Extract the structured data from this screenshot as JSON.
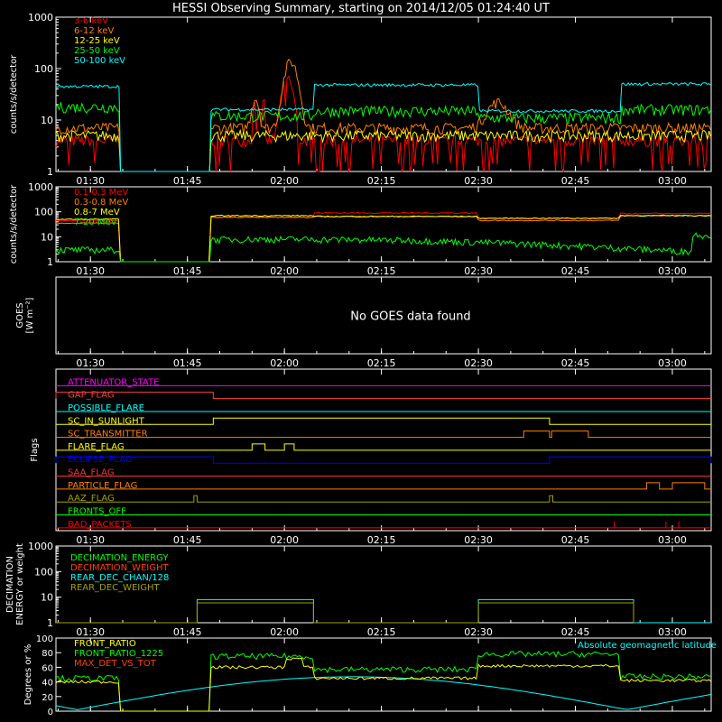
{
  "title": "HESSI Observing Summary, starting on 2014/12/05 01:24:40 UT",
  "time_ticks": [
    "01:30",
    "01:45",
    "02:00",
    "02:15",
    "02:30",
    "02:45",
    "03:00"
  ],
  "colors": {
    "red": "#ff0000",
    "orange": "#ff7f00",
    "yellow": "#ffff00",
    "green": "#00ff00",
    "cyan": "#00ffff",
    "white": "#ffffff",
    "magenta": "#ff00ff",
    "blue": "#0000ff",
    "olive": "#a0a000",
    "brownorange": "#ff8000"
  },
  "chart_data": [
    {
      "type": "line",
      "panel": "lowE",
      "ylabel": "counts/s/detector",
      "y_scale": "log",
      "ylim": [
        1,
        1000
      ],
      "y_ticks": [
        "1",
        "10",
        "100",
        "1000"
      ],
      "series": [
        {
          "name": "3-6 keV",
          "color": "#ff0000"
        },
        {
          "name": "6-12 keV",
          "color": "#ff7f00"
        },
        {
          "name": "12-25 keV",
          "color": "#ffff00"
        },
        {
          "name": "25-50 keV",
          "color": "#00ff00"
        },
        {
          "name": "50-100 keV",
          "color": "#00ffff"
        }
      ]
    },
    {
      "type": "line",
      "panel": "highE",
      "ylabel": "counts/s/detector",
      "y_scale": "log",
      "ylim": [
        1,
        1000
      ],
      "y_ticks": [
        "1",
        "10",
        "100",
        "1000"
      ],
      "series": [
        {
          "name": "0.1-0.3 MeV",
          "color": "#ff0000"
        },
        {
          "name": "0.3-0.8 MeV",
          "color": "#ff7f00"
        },
        {
          "name": "0.8-7 MeV",
          "color": "#ffff00"
        },
        {
          "name": "7-20 MeV",
          "color": "#00ff00"
        }
      ]
    },
    {
      "type": "line",
      "panel": "goes",
      "ylabel_lines": [
        "GOES",
        "[W m⁻²]"
      ],
      "message": "No GOES data found"
    },
    {
      "type": "line",
      "panel": "flags",
      "ylabel": "Flags",
      "flags": [
        {
          "name": "ATTENUATOR_STATE",
          "color": "#ff00ff"
        },
        {
          "name": "GAP_FLAG",
          "color": "#ff4040"
        },
        {
          "name": "POSSIBLE_FLARE",
          "color": "#00ffff"
        },
        {
          "name": "SC_IN_SUNLIGHT",
          "color": "#ffff00"
        },
        {
          "name": "SC_TRANSMITTER",
          "color": "#ff8000"
        },
        {
          "name": "FLARE_FLAG",
          "color": "#ffff00"
        },
        {
          "name": "ECLIPSE_FLAG",
          "color": "#0000ff"
        },
        {
          "name": "SAA_FLAG",
          "color": "#ff3030"
        },
        {
          "name": "PARTICLE_FLAG",
          "color": "#ff8000"
        },
        {
          "name": "AAZ_FLAG",
          "color": "#a0a000"
        },
        {
          "name": "FRONTS_OFF",
          "color": "#00ff00"
        },
        {
          "name": "BAD_PACKETS",
          "color": "#ff0000"
        }
      ]
    },
    {
      "type": "line",
      "panel": "decim",
      "ylabel_lines": [
        "DECIMATION",
        "ENERGY or weight"
      ],
      "y_scale": "log",
      "ylim": [
        1,
        1000
      ],
      "y_ticks": [
        "1",
        "10",
        "100",
        "1000"
      ],
      "series": [
        {
          "name": "DECIMATION_ENERGY",
          "color": "#00ff00"
        },
        {
          "name": "DECIMATION_WEIGHT",
          "color": "#ff4000"
        },
        {
          "name": "REAR_DEC_CHAN/128",
          "color": "#00ffff"
        },
        {
          "name": "REAR_DEC_WEIGHT",
          "color": "#a0a000"
        }
      ]
    },
    {
      "type": "line",
      "panel": "ratio",
      "ylabel": "Degrees or %",
      "ylim": [
        0,
        100
      ],
      "y_ticks": [
        "0",
        "20",
        "40",
        "60",
        "80",
        "100"
      ],
      "series": [
        {
          "name": "FRONT_RATIO",
          "color": "#ffff00"
        },
        {
          "name": "FRONT_RATIO_1225",
          "color": "#00ff00"
        },
        {
          "name": "MAX_DET_VS_TOT",
          "color": "#ff4000"
        },
        {
          "name": "Absolute geomagnetic latitude",
          "color": "#00ffff"
        }
      ]
    }
  ]
}
